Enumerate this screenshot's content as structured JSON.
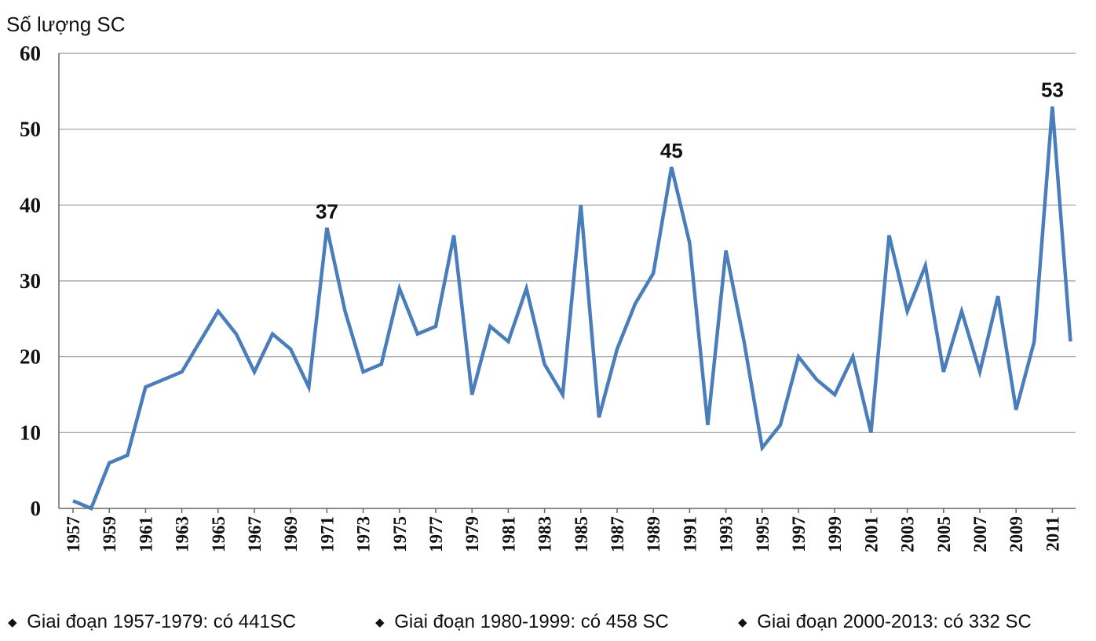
{
  "chart_data": {
    "type": "line",
    "ylabel": "Số lượng SC",
    "xlabel": "",
    "ylim": [
      0,
      60
    ],
    "yticks": [
      0,
      10,
      20,
      30,
      40,
      50,
      60
    ],
    "xtick_labels": [
      "1957",
      "1959",
      "1961",
      "1963",
      "1965",
      "1967",
      "1969",
      "1971",
      "1973",
      "1975",
      "1977",
      "1979",
      "1981",
      "1983",
      "1985",
      "1987",
      "1989",
      "1991",
      "1993",
      "1995",
      "1997",
      "1999",
      "2001",
      "2003",
      "2005",
      "2007",
      "2009",
      "2011"
    ],
    "grid": true,
    "line_color": "#4a7ebb",
    "series": [
      {
        "x": [
          1957,
          1958,
          1959,
          1960,
          1961,
          1962,
          1963,
          1964,
          1965,
          1966,
          1967,
          1968,
          1969,
          1970,
          1971,
          1972,
          1973,
          1974,
          1975,
          1976,
          1977,
          1978,
          1979,
          1980,
          1981,
          1982,
          1983,
          1984,
          1985,
          1986,
          1987,
          1988,
          1989,
          1990,
          1991,
          1992,
          1993,
          1994,
          1995,
          1996,
          1997,
          1998,
          1999,
          2000,
          2001,
          2002,
          2003,
          2004,
          2005,
          2006,
          2007,
          2008,
          2009,
          2010,
          2011,
          2012
        ],
        "values": [
          1,
          0,
          6,
          7,
          16,
          17,
          18,
          22,
          26,
          23,
          18,
          23,
          21,
          16,
          37,
          26,
          18,
          19,
          29,
          23,
          24,
          36,
          15,
          24,
          22,
          29,
          19,
          15,
          40,
          12,
          21,
          27,
          31,
          45,
          35,
          11,
          34,
          22,
          8,
          11,
          20,
          17,
          15,
          20,
          10,
          36,
          26,
          32,
          18,
          26,
          18,
          28,
          13,
          22,
          53,
          22
        ]
      }
    ],
    "annotations": [
      {
        "x": 1971,
        "y": 37,
        "text": "37"
      },
      {
        "x": 1990,
        "y": 45,
        "text": "45"
      },
      {
        "x": 2011,
        "y": 53,
        "text": "53"
      }
    ]
  },
  "legend": {
    "items": [
      {
        "bullet": "◆",
        "text": "Giai đoạn 1957-1979: có 441SC"
      },
      {
        "bullet": "◆",
        "text": "Giai đoạn 1980-1999: có 458 SC"
      },
      {
        "bullet": "◆",
        "text": "Giai đoạn 2000-2013: có 332 SC"
      }
    ]
  }
}
